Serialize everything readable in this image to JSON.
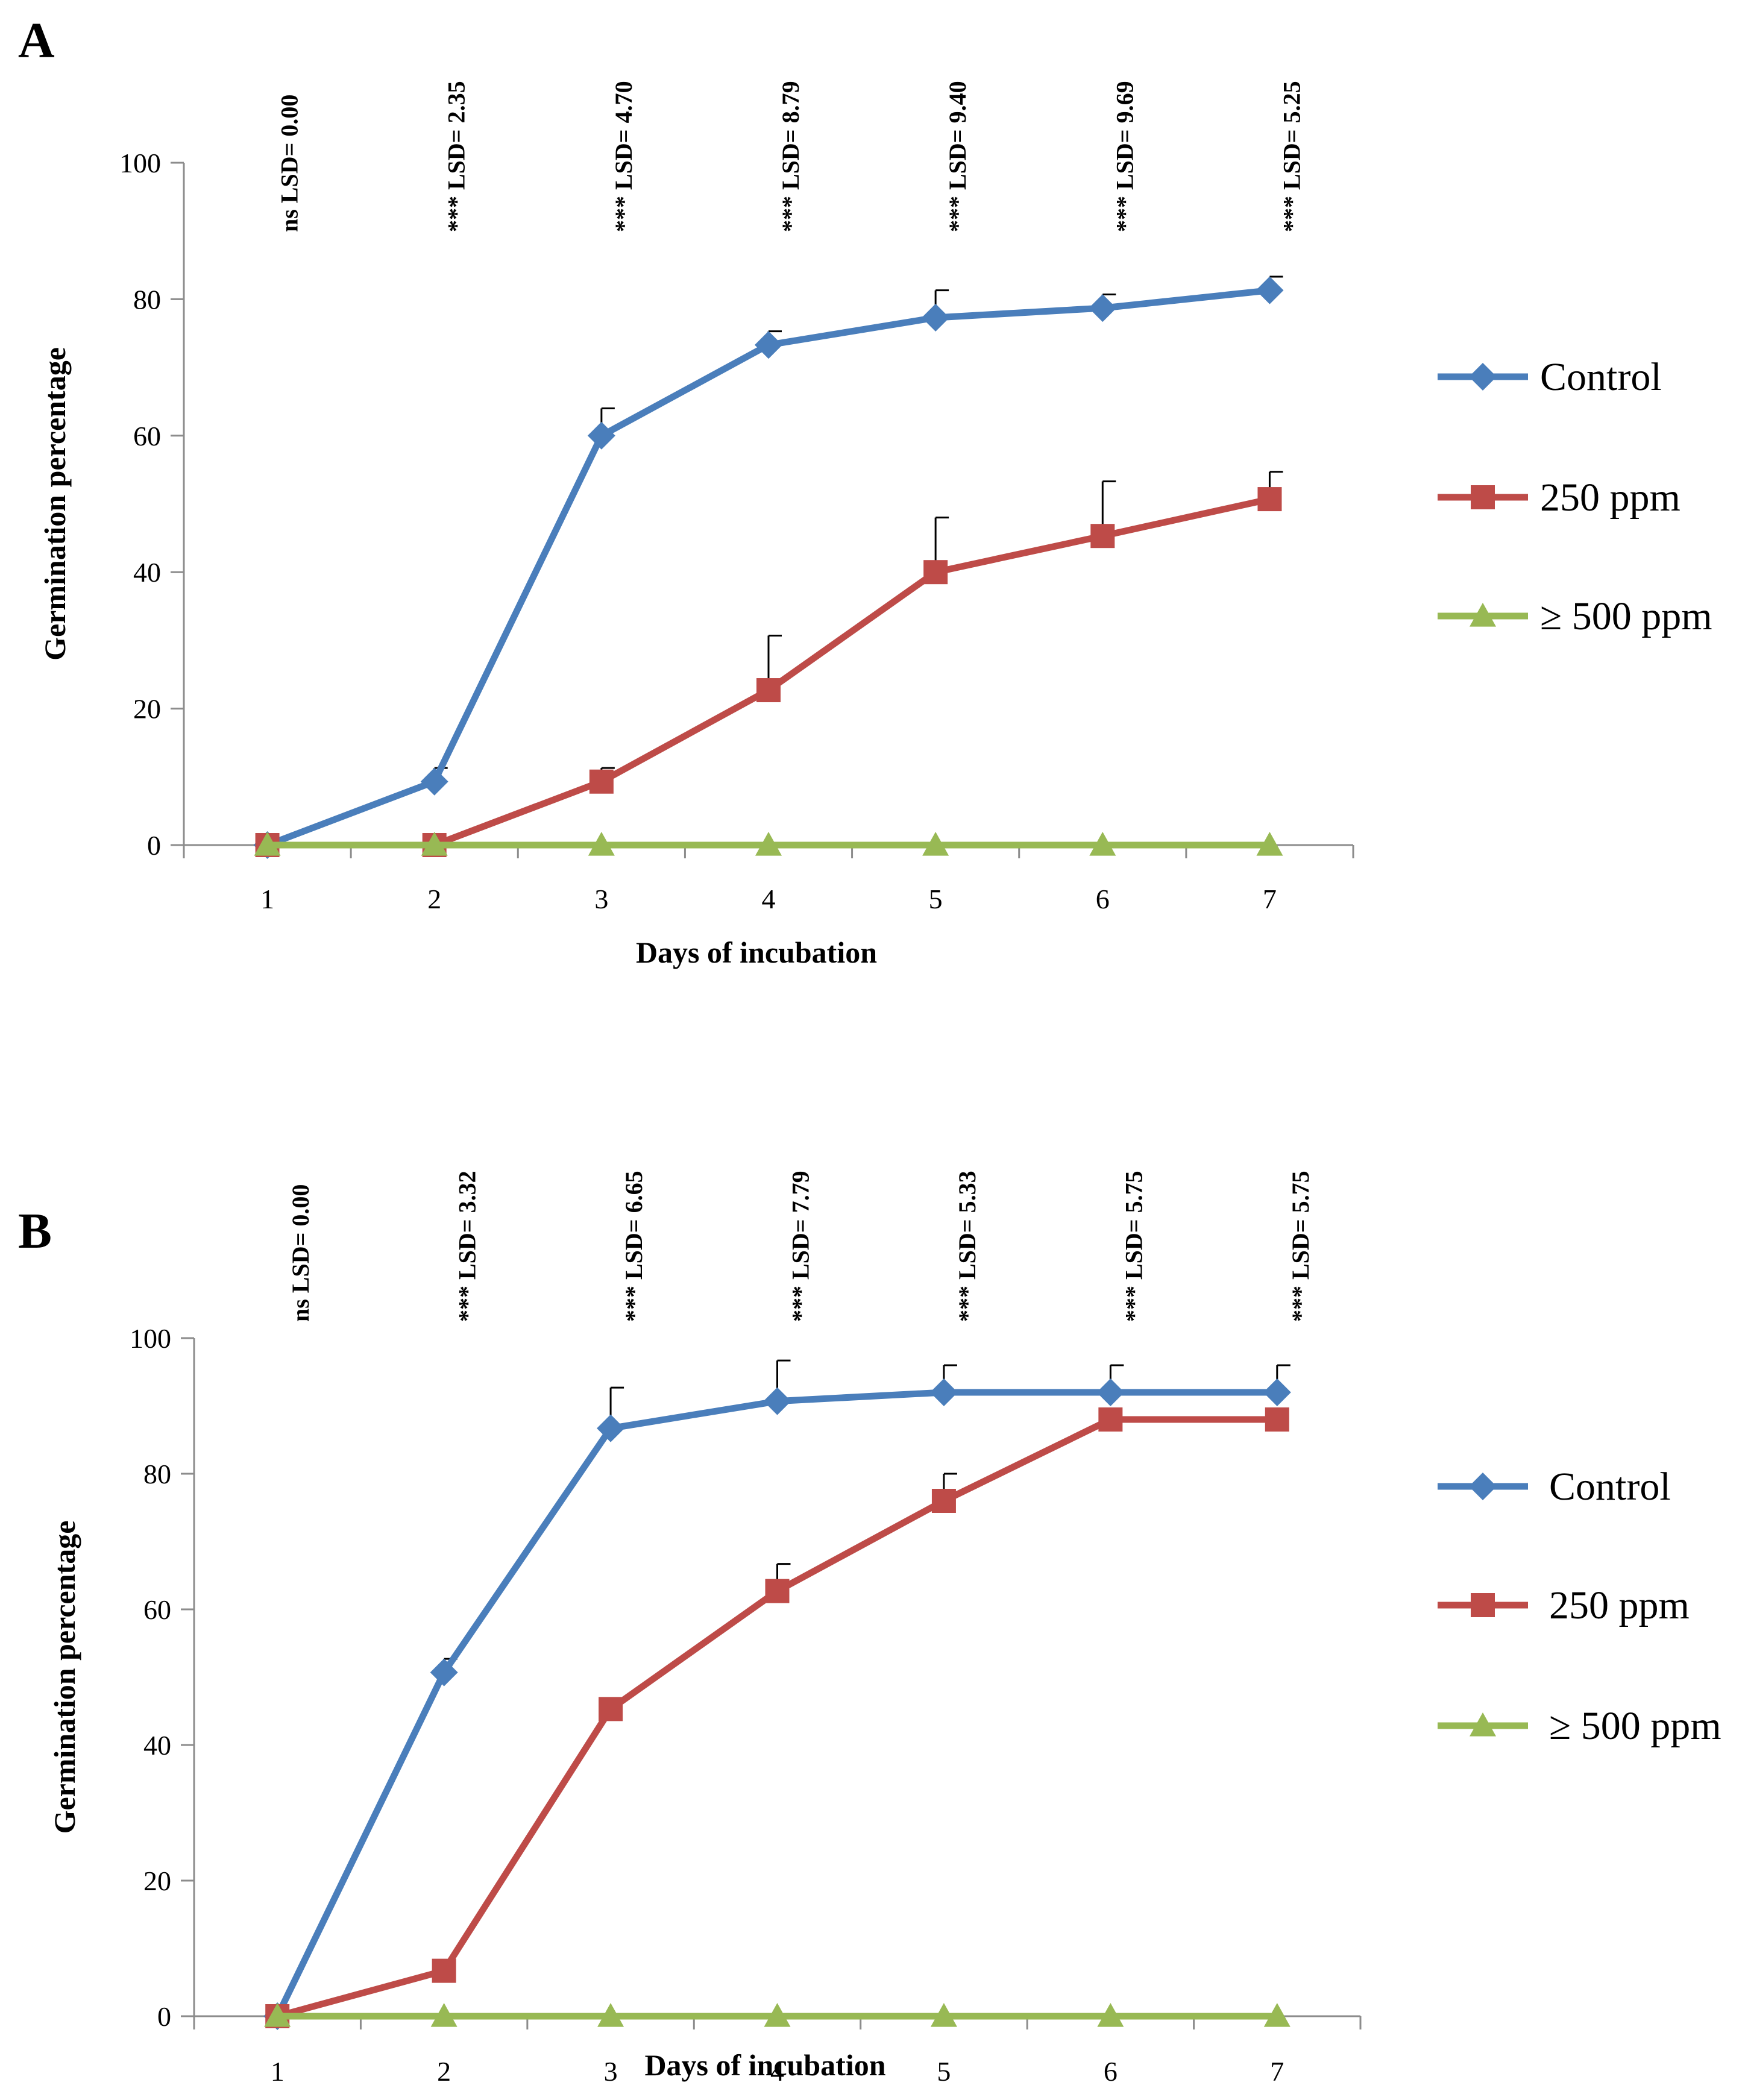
{
  "chart_data": [
    {
      "panel_label": "A",
      "type": "line",
      "xlabel": "Days of incubation",
      "ylabel": "Germination percentage",
      "categories": [
        "1",
        "2",
        "3",
        "4",
        "5",
        "6",
        "7"
      ],
      "ylim": [
        0,
        100
      ],
      "yticks": [
        "0",
        "20",
        "40",
        "60",
        "80",
        "100"
      ],
      "lsd_labels": [
        "ns LSD= 0.00",
        "*** LSD= 2.35",
        "*** LSD= 4.70",
        "*** LSD= 8.79",
        "*** LSD= 9.40",
        "*** LSD= 9.69",
        "*** LSD= 5.25"
      ],
      "series": [
        {
          "name": "Control",
          "color": "#4a7ebb",
          "marker": "diamond",
          "values": [
            0,
            9.3,
            60,
            73.3,
            77.3,
            78.7,
            81.3
          ],
          "errors": [
            0,
            2,
            4,
            2,
            4,
            2,
            2
          ]
        },
        {
          "name": "250 ppm",
          "color": "#be4b48",
          "marker": "square",
          "values": [
            0,
            0,
            9.3,
            22.7,
            40,
            45.3,
            50.7
          ],
          "errors": [
            0,
            0,
            2,
            8,
            8,
            8,
            4
          ]
        },
        {
          "name": "≥ 500 ppm",
          "color": "#98b954",
          "marker": "triangle",
          "values": [
            0,
            0,
            0,
            0,
            0,
            0,
            0
          ],
          "errors": [
            0,
            0,
            0,
            0,
            0,
            0,
            0
          ]
        }
      ]
    },
    {
      "panel_label": "B",
      "type": "line",
      "xlabel": "Days of incubation",
      "ylabel": "Germination percentage",
      "categories": [
        "1",
        "2",
        "3",
        "4",
        "5",
        "6",
        "7"
      ],
      "ylim": [
        0,
        100
      ],
      "yticks": [
        "0",
        "20",
        "40",
        "60",
        "80",
        "100"
      ],
      "lsd_labels": [
        "ns LSD= 0.00",
        "*** LSD= 3.32",
        "*** LSD= 6.65",
        "*** LSD= 7.79",
        "*** LSD= 5.33",
        "*** LSD= 5.75",
        "*** LSD= 5.75"
      ],
      "series": [
        {
          "name": "Control",
          "color": "#4a7ebb",
          "marker": "diamond",
          "values": [
            0,
            50.7,
            86.7,
            90.7,
            92,
            92,
            92
          ],
          "errors": [
            0,
            2,
            6,
            6,
            4,
            4,
            4
          ]
        },
        {
          "name": "250 ppm",
          "color": "#be4b48",
          "marker": "square",
          "values": [
            0,
            6.7,
            45.3,
            62.7,
            76,
            88,
            88
          ],
          "errors": [
            0,
            0,
            0,
            4,
            4,
            0,
            0
          ]
        },
        {
          "name": "≥ 500 ppm",
          "color": "#98b954",
          "marker": "triangle",
          "values": [
            0,
            0,
            0,
            0,
            0,
            0,
            0
          ],
          "errors": [
            0,
            0,
            0,
            0,
            0,
            0,
            0
          ]
        }
      ]
    }
  ]
}
